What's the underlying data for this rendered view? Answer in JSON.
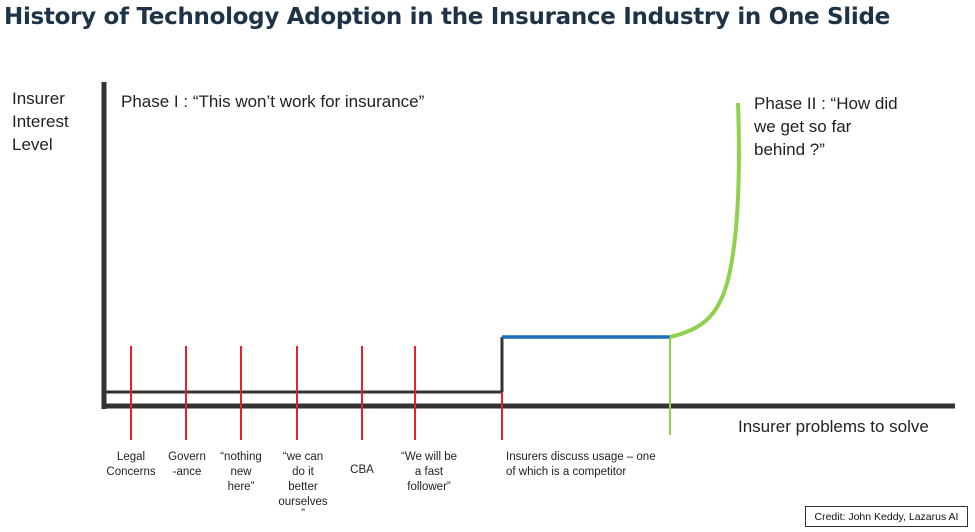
{
  "title": "History of Technology Adoption in the Insurance Industry in One Slide",
  "y_axis_label": [
    "Insurer",
    "Interest",
    "Level"
  ],
  "x_axis_label": "Insurer problems to solve",
  "phase1_text": "Phase I : “This won’t work for insurance”",
  "phase2_lines": [
    "Phase II : “How did",
    "we get so far",
    "behind ?”"
  ],
  "barriers": [
    {
      "lines": [
        "Legal",
        "Concerns"
      ]
    },
    {
      "lines": [
        "Govern",
        "-ance"
      ]
    },
    {
      "lines": [
        "“nothing",
        "new",
        "here”"
      ]
    },
    {
      "lines": [
        "“we can",
        "do it",
        "better",
        "ourselves",
        "”"
      ]
    },
    {
      "lines": [
        "CBA"
      ]
    },
    {
      "lines": [
        "“We will be",
        "a  fast",
        "follower”"
      ]
    }
  ],
  "insurers_discuss": [
    "Insurers discuss usage – one",
    "of which is a competitor"
  ],
  "credit": "Credit: John Keddy, Lazarus AI",
  "colors": {
    "title": "#1f3346",
    "barrier_lines": "#e8202a",
    "plateau": "#1f6fb8",
    "growth_curve": "#8fd14f",
    "axes": "#333333"
  }
}
